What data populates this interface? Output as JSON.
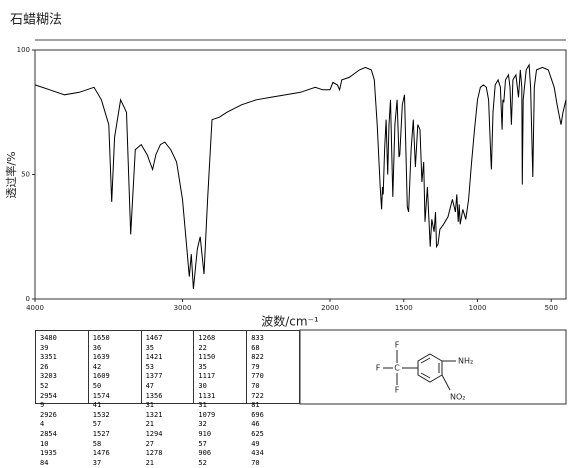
{
  "title": "石蜡糊法",
  "chart_data": {
    "type": "line",
    "x_label": "波数/cm⁻¹",
    "y_label": "透过率/%",
    "x": [
      4000,
      3900,
      3800,
      3700,
      3600,
      3550,
      3500,
      3480,
      3460,
      3420,
      3380,
      3351,
      3320,
      3280,
      3240,
      3203,
      3180,
      3150,
      3120,
      3080,
      3040,
      3000,
      2970,
      2954,
      2940,
      2926,
      2900,
      2880,
      2854,
      2830,
      2800,
      2750,
      2700,
      2600,
      2500,
      2400,
      2300,
      2200,
      2100,
      2050,
      2000,
      1980,
      1950,
      1935,
      1920,
      1870,
      1800,
      1760,
      1720,
      1700,
      1680,
      1660,
      1650,
      1644,
      1639,
      1630,
      1620,
      1609,
      1600,
      1590,
      1574,
      1560,
      1545,
      1532,
      1527,
      1510,
      1495,
      1476,
      1467,
      1450,
      1435,
      1421,
      1405,
      1390,
      1377,
      1365,
      1356,
      1340,
      1321,
      1310,
      1294,
      1285,
      1278,
      1268,
      1255,
      1230,
      1200,
      1170,
      1150,
      1140,
      1131,
      1124,
      1117,
      1100,
      1079,
      1060,
      1040,
      1020,
      1000,
      980,
      960,
      940,
      925,
      910,
      906,
      895,
      880,
      860,
      845,
      833,
      828,
      822,
      810,
      790,
      780,
      770,
      760,
      740,
      722,
      710,
      700,
      696,
      690,
      670,
      650,
      640,
      625,
      615,
      600,
      560,
      520,
      480,
      460,
      434,
      420,
      400
    ],
    "series": [
      {
        "color": "#000000",
        "values": [
          86,
          84,
          82,
          83,
          85,
          80,
          70,
          39,
          65,
          80,
          75,
          26,
          60,
          62,
          58,
          52,
          58,
          62,
          63,
          60,
          55,
          40,
          20,
          9,
          18,
          4,
          20,
          25,
          10,
          40,
          72,
          73,
          75,
          78,
          80,
          81,
          82,
          83,
          85,
          84,
          84,
          87,
          86,
          84,
          88,
          89,
          92,
          93,
          92,
          88,
          70,
          45,
          36,
          45,
          42,
          60,
          72,
          50,
          70,
          80,
          41,
          70,
          80,
          57,
          58,
          78,
          82,
          37,
          35,
          60,
          72,
          53,
          70,
          68,
          47,
          55,
          31,
          45,
          21,
          32,
          27,
          35,
          21,
          22,
          28,
          30,
          33,
          40,
          35,
          42,
          31,
          38,
          30,
          36,
          32,
          40,
          55,
          68,
          80,
          85,
          86,
          85,
          80,
          57,
          52,
          75,
          86,
          88,
          85,
          68,
          80,
          79,
          88,
          90,
          85,
          70,
          88,
          90,
          81,
          92,
          85,
          46,
          80,
          92,
          94,
          85,
          49,
          85,
          92,
          93,
          92,
          85,
          78,
          70,
          75,
          80
        ]
      }
    ],
    "xlim": [
      4000,
      400
    ],
    "xticks": [
      4000,
      3000,
      2000,
      1500,
      1000,
      500
    ],
    "ylim": [
      0,
      100
    ],
    "yticks": [
      0,
      50,
      100
    ]
  },
  "peak_table": {
    "columns": [
      [
        [
          3480,
          39
        ],
        [
          3351,
          26
        ],
        [
          3203,
          52
        ],
        [
          2954,
          9
        ],
        [
          2926,
          4
        ],
        [
          2854,
          10
        ],
        [
          1935,
          84
        ]
      ],
      [
        [
          1650,
          36
        ],
        [
          1639,
          42
        ],
        [
          1609,
          50
        ],
        [
          1574,
          41
        ],
        [
          1532,
          57
        ],
        [
          1527,
          58
        ],
        [
          1476,
          37
        ]
      ],
      [
        [
          1467,
          35
        ],
        [
          1421,
          53
        ],
        [
          1377,
          47
        ],
        [
          1356,
          31
        ],
        [
          1321,
          21
        ],
        [
          1294,
          27
        ],
        [
          1278,
          21
        ]
      ],
      [
        [
          1268,
          22
        ],
        [
          1150,
          35
        ],
        [
          1117,
          30
        ],
        [
          1131,
          31
        ],
        [
          1079,
          32
        ],
        [
          910,
          57
        ],
        [
          906,
          52
        ]
      ],
      [
        [
          833,
          68
        ],
        [
          822,
          79
        ],
        [
          770,
          70
        ],
        [
          722,
          81
        ],
        [
          696,
          46
        ],
        [
          625,
          49
        ],
        [
          434,
          70
        ]
      ]
    ]
  },
  "structure": {
    "labels": [
      "F",
      "F",
      "F",
      "C",
      "NH₂",
      "NO₂"
    ]
  }
}
